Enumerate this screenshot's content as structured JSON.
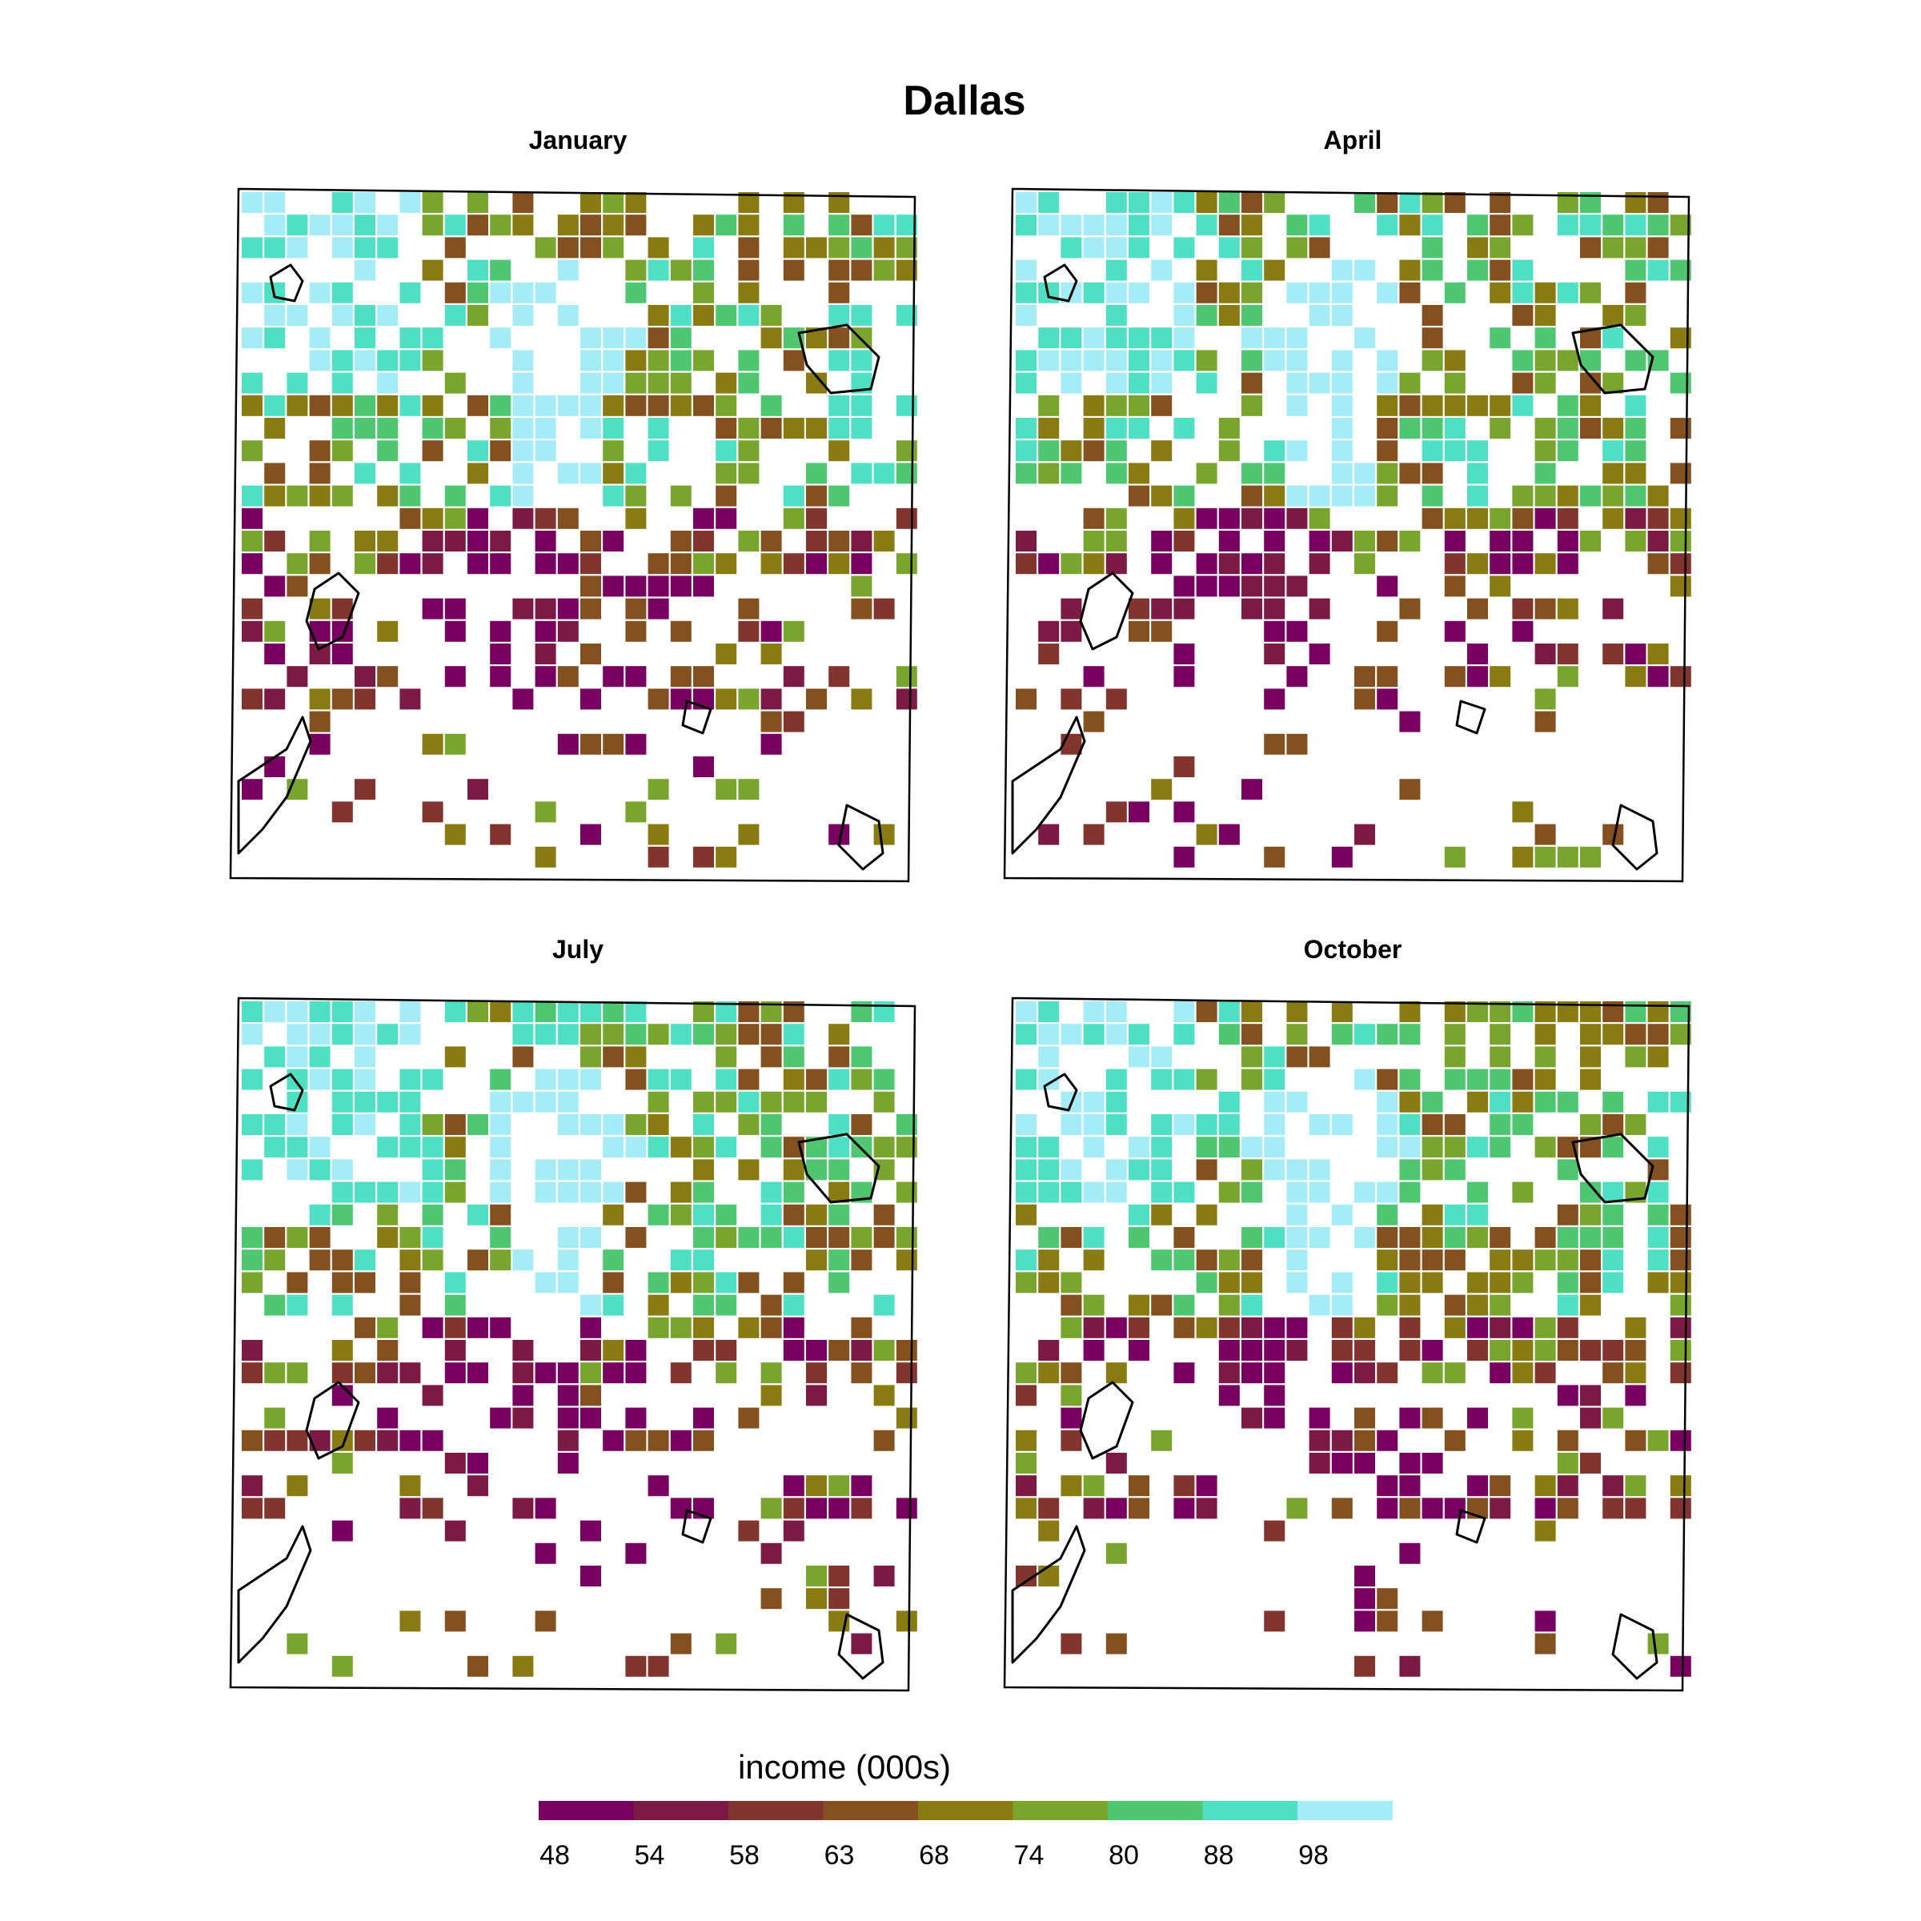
{
  "chart_data": {
    "type": "heatmap",
    "title": "Dallas",
    "panels": [
      {
        "name": "January",
        "grid_seed": 11
      },
      {
        "name": "April",
        "grid_seed": 23
      },
      {
        "name": "July",
        "grid_seed": 37
      },
      {
        "name": "October",
        "grid_seed": 53
      }
    ],
    "grid": {
      "columns": 30,
      "rows": 30
    },
    "colorbar": {
      "title": "income (000s)",
      "ticks": [
        "48",
        "54",
        "58",
        "63",
        "68",
        "74",
        "80",
        "88",
        "98"
      ],
      "colors": [
        "#780060",
        "#7a1a45",
        "#82352f",
        "#83511f",
        "#877b12",
        "#79a52e",
        "#4fc672",
        "#4fe0c4",
        "#a6ecf6"
      ]
    }
  }
}
